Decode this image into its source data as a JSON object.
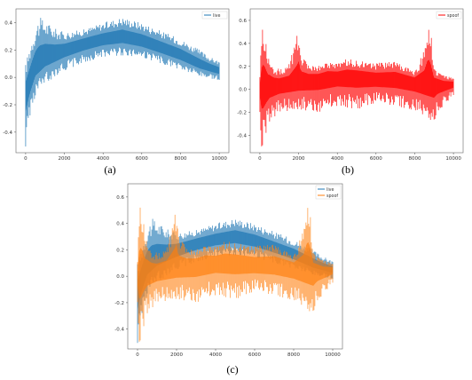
{
  "chart_data": [
    {
      "type": "line",
      "caption": "(a)",
      "series": [
        {
          "name": "live",
          "color": "#1f77b4",
          "values": []
        }
      ],
      "x_ticks": [
        "0",
        "2000",
        "4000",
        "6000",
        "8000",
        "10000"
      ],
      "y_ticks": [
        "-0.4",
        "-0.2",
        "0.0",
        "0.2",
        "0.4"
      ],
      "xlim": [
        -500,
        10500
      ],
      "ylim": [
        -0.55,
        0.5
      ],
      "legend": "top-right",
      "grid": false,
      "envelope": {
        "upper_x": [
          0,
          300,
          700,
          1000,
          1500,
          2000,
          3000,
          4000,
          5000,
          6000,
          7000,
          8000,
          9000,
          9500,
          10000
        ],
        "upper_y": [
          0.1,
          0.28,
          0.44,
          0.42,
          0.36,
          0.33,
          0.35,
          0.4,
          0.44,
          0.4,
          0.34,
          0.28,
          0.2,
          0.15,
          0.12
        ],
        "lower_x": [
          0,
          200,
          500,
          1000,
          2000,
          3000,
          4000,
          5000,
          6000,
          7000,
          8000,
          9000,
          10000
        ],
        "lower_y": [
          -0.52,
          -0.3,
          -0.15,
          -0.05,
          0.05,
          0.1,
          0.15,
          0.16,
          0.14,
          0.1,
          0.05,
          0.0,
          -0.02
        ],
        "mid_x": [
          0,
          500,
          1000,
          2000,
          3000,
          4000,
          5000,
          6000,
          7000,
          8000,
          9000,
          10000
        ],
        "mid_y": [
          -0.1,
          0.1,
          0.15,
          0.2,
          0.25,
          0.28,
          0.3,
          0.27,
          0.22,
          0.17,
          0.1,
          0.05
        ]
      }
    },
    {
      "type": "line",
      "caption": "(b)",
      "series": [
        {
          "name": "spoof",
          "color": "#ff0000",
          "values": []
        }
      ],
      "x_ticks": [
        "0",
        "2000",
        "4000",
        "6000",
        "8000",
        "10000"
      ],
      "y_ticks": [
        "-0.4",
        "-0.2",
        "0.0",
        "0.2",
        "0.4",
        "0.6"
      ],
      "xlim": [
        -500,
        10500
      ],
      "ylim": [
        -0.55,
        0.7
      ],
      "legend": "top-right",
      "grid": false,
      "envelope": {
        "upper_x": [
          0,
          100,
          200,
          400,
          700,
          1000,
          1500,
          1900,
          2000,
          2100,
          2500,
          3000,
          3500,
          4000,
          4500,
          5000,
          6000,
          7000,
          7500,
          8000,
          8500,
          8700,
          8800,
          9000,
          9500,
          10000
        ],
        "upper_y": [
          0.15,
          0.6,
          0.58,
          0.3,
          0.2,
          0.18,
          0.22,
          0.45,
          0.55,
          0.3,
          0.22,
          0.2,
          0.25,
          0.22,
          0.27,
          0.25,
          0.23,
          0.25,
          0.2,
          0.15,
          0.35,
          0.65,
          0.6,
          0.2,
          0.12,
          0.1
        ],
        "lower_x": [
          0,
          100,
          300,
          500,
          1000,
          2000,
          3000,
          4000,
          5000,
          6000,
          7000,
          8000,
          8500,
          9000,
          9200,
          10000
        ],
        "lower_y": [
          -0.2,
          -0.55,
          -0.4,
          -0.3,
          -0.2,
          -0.18,
          -0.2,
          -0.15,
          -0.18,
          -0.12,
          -0.15,
          -0.2,
          -0.25,
          -0.3,
          -0.2,
          -0.05
        ],
        "mid_x": [
          0,
          500,
          1000,
          2000,
          3000,
          4000,
          5000,
          6000,
          7000,
          8000,
          9000,
          10000
        ],
        "mid_y": [
          0.0,
          0.05,
          0.05,
          0.08,
          0.1,
          0.12,
          0.12,
          0.1,
          0.1,
          0.08,
          0.05,
          0.05
        ]
      }
    },
    {
      "type": "line",
      "caption": "(c)",
      "series": [
        {
          "name": "live",
          "color": "#1f77b4",
          "values": []
        },
        {
          "name": "spoof",
          "color": "#ff7f0e",
          "values": []
        }
      ],
      "x_ticks": [
        "0",
        "2000",
        "4000",
        "6000",
        "8000",
        "10000"
      ],
      "y_ticks": [
        "-0.4",
        "-0.2",
        "0.0",
        "0.2",
        "0.4",
        "0.6"
      ],
      "xlim": [
        -500,
        10500
      ],
      "ylim": [
        -0.55,
        0.7
      ],
      "legend": "top-right",
      "grid": false
    }
  ]
}
